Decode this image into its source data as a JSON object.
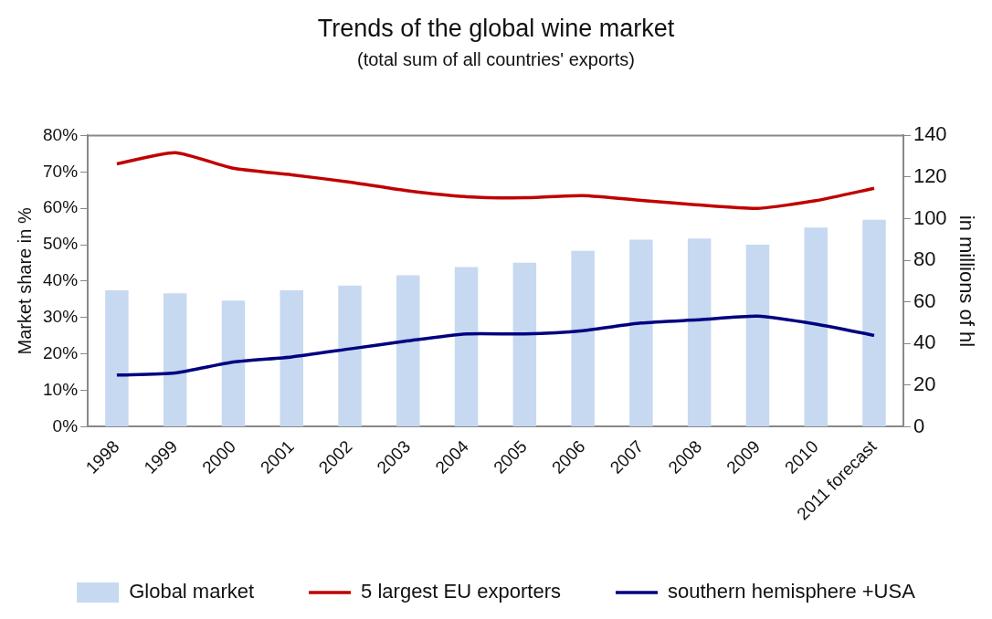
{
  "chart_data": {
    "type": "line",
    "title": "Trends of the global wine market",
    "subtitle": "(total sum of all countries' exports)",
    "ylabel": "Market share in %",
    "y2label": "in millions of hl",
    "categories": [
      "1998",
      "1999",
      "2000",
      "2001",
      "2002",
      "2003",
      "2004",
      "2005",
      "2006",
      "2007",
      "2008",
      "2009",
      "2010",
      "2011 forecast"
    ],
    "series": [
      {
        "name": "Global market",
        "type": "bar",
        "axis": "y2",
        "color": "#c6d9f0",
        "values": [
          65.6,
          64.2,
          60.7,
          65.6,
          67.9,
          72.8,
          76.8,
          78.9,
          84.6,
          89.9,
          90.5,
          87.5,
          95.8,
          99.5
        ]
      },
      {
        "name": "5 largest EU exporters",
        "color": "#c00000",
        "values": [
          72.2,
          75.3,
          71,
          69.2,
          67.2,
          64.8,
          63.2,
          62.9,
          63.5,
          62.2,
          60.9,
          60,
          62.1,
          65.5
        ]
      },
      {
        "name": "southern hemisphere +USA",
        "color": "#000080",
        "values": [
          14.2,
          14.8,
          17.8,
          19.2,
          21.4,
          23.6,
          25.5,
          25.5,
          26.4,
          28.5,
          29.4,
          30.4,
          28.2,
          25.1
        ]
      }
    ],
    "ylim": [
      0,
      80
    ],
    "yticks": [
      {
        "value": 0,
        "label": "0%"
      },
      {
        "value": 10,
        "label": "10%"
      },
      {
        "value": 20,
        "label": "20%"
      },
      {
        "value": 30,
        "label": "30%"
      },
      {
        "value": 40,
        "label": "40%"
      },
      {
        "value": 50,
        "label": "50%"
      },
      {
        "value": 60,
        "label": "60%"
      },
      {
        "value": 70,
        "label": "70%"
      },
      {
        "value": 80,
        "label": "80%"
      }
    ],
    "y2lim": [
      0,
      140
    ],
    "y2ticks": [
      0,
      20,
      40,
      60,
      80,
      100,
      120,
      140
    ],
    "grid": false,
    "legend": "bottom",
    "marker": "none",
    "line_style": "solid"
  }
}
